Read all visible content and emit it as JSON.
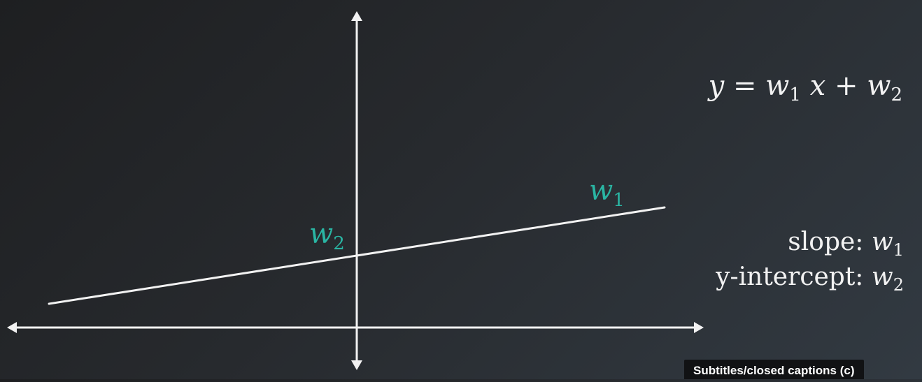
{
  "diagram": {
    "labels": {
      "w1_label": {
        "base": "w",
        "sub": "1"
      },
      "w2_label": {
        "base": "w",
        "sub": "2"
      }
    },
    "colors": {
      "axis": "#f2f2f2",
      "line": "#f2f2f2",
      "accent": "#2ab5a3"
    }
  },
  "equation": {
    "y": "y",
    "eq": "=",
    "w": "w",
    "sub1": "1",
    "x": "x",
    "plus": "+",
    "sub2": "2"
  },
  "info": {
    "slope_label": "slope:",
    "slope_var": "w",
    "slope_sub": "1",
    "intercept_label": "y-intercept:",
    "intercept_var": "w",
    "intercept_sub": "2"
  },
  "captions_badge": "Subtitles/closed captions (c)"
}
